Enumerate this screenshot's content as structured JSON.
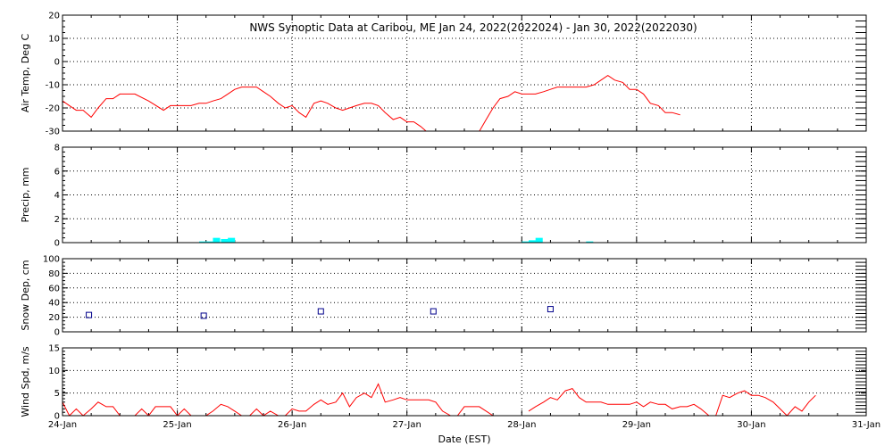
{
  "chart_data": {
    "type": "line",
    "title": "NWS Synoptic Data at Caribou, ME   Jan 24, 2022(2022024) - Jan 30, 2022(2022030)",
    "xlabel": "Date (EST)",
    "x_tick_labels": [
      "24-Jan",
      "25-Jan",
      "26-Jan",
      "27-Jan",
      "28-Jan",
      "29-Jan",
      "30-Jan",
      "31-Jan"
    ],
    "x_range_days": [
      0,
      7
    ],
    "colors": {
      "temp": "#ff0000",
      "precip": "#00ffff",
      "snow": "#00008b",
      "wind": "#ff0000"
    },
    "panels": [
      {
        "id": "temp",
        "ylabel": "Air Temp, Deg C",
        "ylim": [
          -30,
          20
        ],
        "yticks": [
          20,
          10,
          0,
          -10,
          -20,
          -30
        ],
        "series": [
          {
            "type": "line",
            "points": [
              [
                0,
                -17
              ],
              [
                0.06,
                -19
              ],
              [
                0.12,
                -21
              ],
              [
                0.18,
                -21
              ],
              [
                0.25,
                -24
              ],
              [
                0.31,
                -20
              ],
              [
                0.38,
                -16
              ],
              [
                0.44,
                -16
              ],
              [
                0.5,
                -14
              ],
              [
                0.56,
                -14
              ],
              [
                0.63,
                -14
              ],
              [
                0.75,
                -17
              ],
              [
                0.88,
                -21
              ],
              [
                0.94,
                -19
              ],
              [
                1.0,
                -19
              ],
              [
                1.06,
                -19
              ],
              [
                1.12,
                -19
              ],
              [
                1.19,
                -18
              ],
              [
                1.25,
                -18
              ],
              [
                1.31,
                -17
              ],
              [
                1.38,
                -16
              ],
              [
                1.44,
                -14
              ],
              [
                1.5,
                -12
              ],
              [
                1.56,
                -11
              ],
              [
                1.63,
                -11
              ],
              [
                1.69,
                -11
              ],
              [
                1.75,
                -13
              ],
              [
                1.81,
                -15
              ],
              [
                1.88,
                -18
              ],
              [
                1.94,
                -20
              ],
              [
                2.0,
                -19
              ],
              [
                2.06,
                -22
              ],
              [
                2.12,
                -24
              ],
              [
                2.19,
                -18
              ],
              [
                2.25,
                -17
              ],
              [
                2.31,
                -18
              ],
              [
                2.38,
                -20
              ],
              [
                2.44,
                -21
              ],
              [
                2.5,
                -20
              ],
              [
                2.56,
                -19
              ],
              [
                2.63,
                -18
              ],
              [
                2.69,
                -18
              ],
              [
                2.75,
                -19
              ],
              [
                2.81,
                -22
              ],
              [
                2.88,
                -25
              ],
              [
                2.94,
                -24
              ],
              [
                3.0,
                -26
              ],
              [
                3.06,
                -26
              ],
              [
                3.12,
                -28
              ],
              [
                3.19,
                -31
              ]
            ]
          },
          {
            "type": "line",
            "points": [
              [
                3.62,
                -31
              ],
              [
                3.69,
                -25
              ],
              [
                3.75,
                -20
              ],
              [
                3.81,
                -16
              ],
              [
                3.88,
                -15
              ],
              [
                3.94,
                -13
              ],
              [
                4.0,
                -14
              ],
              [
                4.06,
                -14
              ],
              [
                4.12,
                -14
              ],
              [
                4.19,
                -13
              ],
              [
                4.25,
                -12
              ],
              [
                4.31,
                -11
              ],
              [
                4.38,
                -11
              ],
              [
                4.44,
                -11
              ],
              [
                4.5,
                -11
              ],
              [
                4.56,
                -11
              ],
              [
                4.63,
                -10
              ],
              [
                4.69,
                -8
              ],
              [
                4.75,
                -6
              ],
              [
                4.81,
                -8
              ],
              [
                4.88,
                -9
              ],
              [
                4.94,
                -12
              ],
              [
                5.0,
                -12
              ],
              [
                5.06,
                -14
              ],
              [
                5.12,
                -18
              ],
              [
                5.19,
                -19
              ],
              [
                5.25,
                -22
              ],
              [
                5.31,
                -22
              ],
              [
                5.38,
                -23
              ]
            ]
          }
        ]
      },
      {
        "id": "precip",
        "ylabel": "Precip, mm",
        "ylim": [
          0,
          8
        ],
        "yticks": [
          0,
          2,
          4,
          6,
          8
        ],
        "series": [
          {
            "type": "bar",
            "bars": [
              [
                1.19,
                0.1
              ],
              [
                1.25,
                0.1
              ],
              [
                1.31,
                0.4
              ],
              [
                1.38,
                0.3
              ],
              [
                1.44,
                0.4
              ],
              [
                4.0,
                0.1
              ],
              [
                4.06,
                0.2
              ],
              [
                4.12,
                0.4
              ],
              [
                4.56,
                0.1
              ]
            ]
          }
        ]
      },
      {
        "id": "snow",
        "ylabel": "Snow Dep, cm",
        "ylim": [
          0,
          100
        ],
        "yticks": [
          0,
          20,
          40,
          60,
          80,
          100
        ],
        "series": [
          {
            "type": "scatter",
            "points": [
              [
                0.23,
                23
              ],
              [
                1.23,
                22
              ],
              [
                2.25,
                28
              ],
              [
                3.23,
                28
              ],
              [
                4.25,
                31
              ]
            ]
          }
        ]
      },
      {
        "id": "wind",
        "ylabel": "Wind Spd, m/s",
        "ylim": [
          0,
          15
        ],
        "yticks": [
          0,
          5,
          10,
          15
        ],
        "series": [
          {
            "type": "line",
            "points": [
              [
                0,
                3
              ],
              [
                0.06,
                0
              ],
              [
                0.12,
                1.5
              ],
              [
                0.18,
                0
              ],
              [
                0.25,
                1.5
              ],
              [
                0.31,
                3
              ],
              [
                0.38,
                2
              ],
              [
                0.44,
                2
              ],
              [
                0.5,
                0
              ],
              [
                0.56,
                0
              ],
              [
                0.63,
                0
              ],
              [
                0.69,
                1.5
              ],
              [
                0.75,
                0
              ],
              [
                0.81,
                2
              ],
              [
                0.88,
                2
              ],
              [
                0.94,
                2
              ],
              [
                1.0,
                0
              ],
              [
                1.06,
                1.5
              ],
              [
                1.12,
                0
              ],
              [
                1.19,
                0
              ],
              [
                1.25,
                0
              ],
              [
                1.31,
                1
              ],
              [
                1.38,
                2.5
              ],
              [
                1.44,
                2
              ],
              [
                1.5,
                1
              ],
              [
                1.56,
                0
              ],
              [
                1.63,
                0
              ],
              [
                1.69,
                1.5
              ],
              [
                1.75,
                0
              ],
              [
                1.81,
                1
              ],
              [
                1.88,
                0
              ],
              [
                1.94,
                0
              ],
              [
                2.0,
                1.5
              ],
              [
                2.06,
                1
              ],
              [
                2.12,
                1
              ],
              [
                2.19,
                2.5
              ],
              [
                2.25,
                3.5
              ],
              [
                2.31,
                2.5
              ],
              [
                2.38,
                3
              ],
              [
                2.44,
                5
              ],
              [
                2.5,
                2
              ],
              [
                2.56,
                4
              ],
              [
                2.63,
                5
              ],
              [
                2.69,
                4
              ],
              [
                2.75,
                7
              ],
              [
                2.81,
                3
              ],
              [
                2.88,
                3.5
              ],
              [
                2.94,
                4
              ],
              [
                3.0,
                3.5
              ],
              [
                3.06,
                3.5
              ],
              [
                3.12,
                3.5
              ],
              [
                3.19,
                3.5
              ],
              [
                3.25,
                3
              ],
              [
                3.31,
                1
              ],
              [
                3.38,
                0
              ],
              [
                3.44,
                0
              ],
              [
                3.5,
                2
              ],
              [
                3.56,
                2
              ],
              [
                3.63,
                2
              ],
              [
                3.69,
                1
              ],
              [
                3.75,
                0
              ],
              [
                3.81,
                0
              ]
            ]
          },
          {
            "type": "line",
            "points": [
              [
                4.06,
                1
              ],
              [
                4.12,
                2
              ],
              [
                4.19,
                3
              ],
              [
                4.25,
                4
              ],
              [
                4.31,
                3.5
              ],
              [
                4.38,
                5.5
              ],
              [
                4.44,
                6
              ],
              [
                4.5,
                4
              ],
              [
                4.56,
                3
              ],
              [
                4.63,
                3
              ],
              [
                4.69,
                3
              ],
              [
                4.75,
                2.5
              ],
              [
                4.81,
                2.5
              ],
              [
                4.88,
                2.5
              ],
              [
                4.94,
                2.5
              ],
              [
                5.0,
                3
              ],
              [
                5.06,
                2
              ],
              [
                5.12,
                3
              ],
              [
                5.19,
                2.5
              ],
              [
                5.25,
                2.5
              ],
              [
                5.31,
                1.5
              ],
              [
                5.38,
                2
              ],
              [
                5.44,
                2
              ],
              [
                5.5,
                2.5
              ],
              [
                5.56,
                1.5
              ],
              [
                5.63,
                0
              ],
              [
                5.69,
                0
              ],
              [
                5.75,
                4.5
              ],
              [
                5.81,
                4
              ],
              [
                5.88,
                5
              ],
              [
                5.94,
                5.5
              ],
              [
                6.0,
                4.5
              ],
              [
                6.06,
                4.5
              ],
              [
                6.12,
                4
              ],
              [
                6.19,
                3
              ],
              [
                6.25,
                1.5
              ],
              [
                6.31,
                0
              ],
              [
                6.38,
                2
              ],
              [
                6.44,
                1
              ],
              [
                6.5,
                3
              ],
              [
                6.56,
                4.5
              ]
            ]
          }
        ]
      }
    ]
  }
}
